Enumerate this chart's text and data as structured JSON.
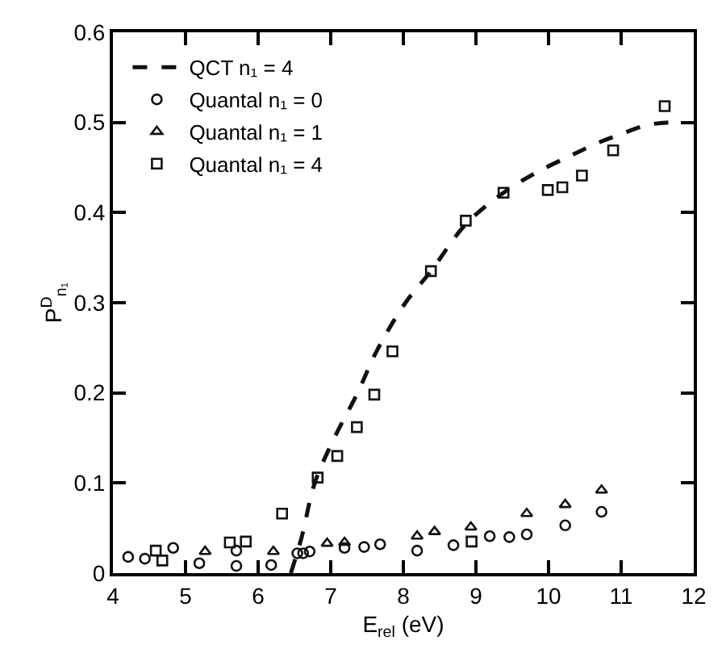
{
  "chart_data": {
    "type": "scatter",
    "xlabel": "E$_{rel}$ (eV)",
    "ylabel": "P$^{D}$$_{n₁}$",
    "xlim": [
      4,
      12
    ],
    "xticks": [
      4,
      5,
      6,
      7,
      8,
      9,
      10,
      11,
      12
    ],
    "ylim": [
      0,
      0.6
    ],
    "yticks": [
      0,
      0.1,
      0.2,
      0.3,
      0.4,
      0.5,
      0.6
    ],
    "legend": "top left",
    "series": [
      {
        "name": "QCT n₁ = 4",
        "type": "line",
        "line_style": "dashed",
        "marker": "none",
        "color": "#111111",
        "x": [
          6.45,
          6.6,
          6.78,
          7.05,
          7.37,
          7.63,
          8.03,
          8.38,
          8.86,
          9.38,
          9.8,
          10.3,
          10.7,
          11.03,
          11.35,
          11.65
        ],
        "values": [
          0,
          0.04,
          0.1,
          0.15,
          0.2,
          0.246,
          0.3,
          0.335,
          0.387,
          0.422,
          0.443,
          0.463,
          0.478,
          0.488,
          0.497,
          0.5
        ]
      },
      {
        "name": "Quantal n₁ = 0",
        "marker": "circle",
        "color": "#111111",
        "x": [
          4.21,
          4.44,
          4.83,
          5.19,
          5.7,
          5.7,
          6.18,
          6.54,
          6.62,
          6.71,
          7.19,
          7.46,
          7.68,
          8.19,
          8.69,
          9.19,
          9.46,
          9.7,
          10.23,
          10.73
        ],
        "values": [
          0.018,
          0.016,
          0.028,
          0.011,
          0.008,
          0.025,
          0.009,
          0.022,
          0.022,
          0.024,
          0.028,
          0.029,
          0.032,
          0.025,
          0.031,
          0.041,
          0.04,
          0.043,
          0.053,
          0.068
        ]
      },
      {
        "name": "Quantal n₁ = 1",
        "marker": "triangle",
        "color": "#111111",
        "x": [
          5.27,
          6.21,
          6.95,
          7.19,
          8.19,
          8.43,
          8.93,
          9.7,
          10.23,
          10.73
        ],
        "values": [
          0.024,
          0.024,
          0.033,
          0.034,
          0.041,
          0.046,
          0.051,
          0.066,
          0.076,
          0.092
        ]
      },
      {
        "name": "Quantal n₁ = 4",
        "marker": "square",
        "color": "#111111",
        "x": [
          4.59,
          4.68,
          5.61,
          5.83,
          6.33,
          6.82,
          7.09,
          7.36,
          7.6,
          7.85,
          8.38,
          8.86,
          8.94,
          9.38,
          9.99,
          10.19,
          10.46,
          10.89,
          11.6
        ],
        "values": [
          0.025,
          0.014,
          0.034,
          0.035,
          0.066,
          0.106,
          0.13,
          0.162,
          0.198,
          0.246,
          0.335,
          0.391,
          0.035,
          0.422,
          0.425,
          0.428,
          0.441,
          0.469,
          0.518
        ]
      }
    ]
  }
}
